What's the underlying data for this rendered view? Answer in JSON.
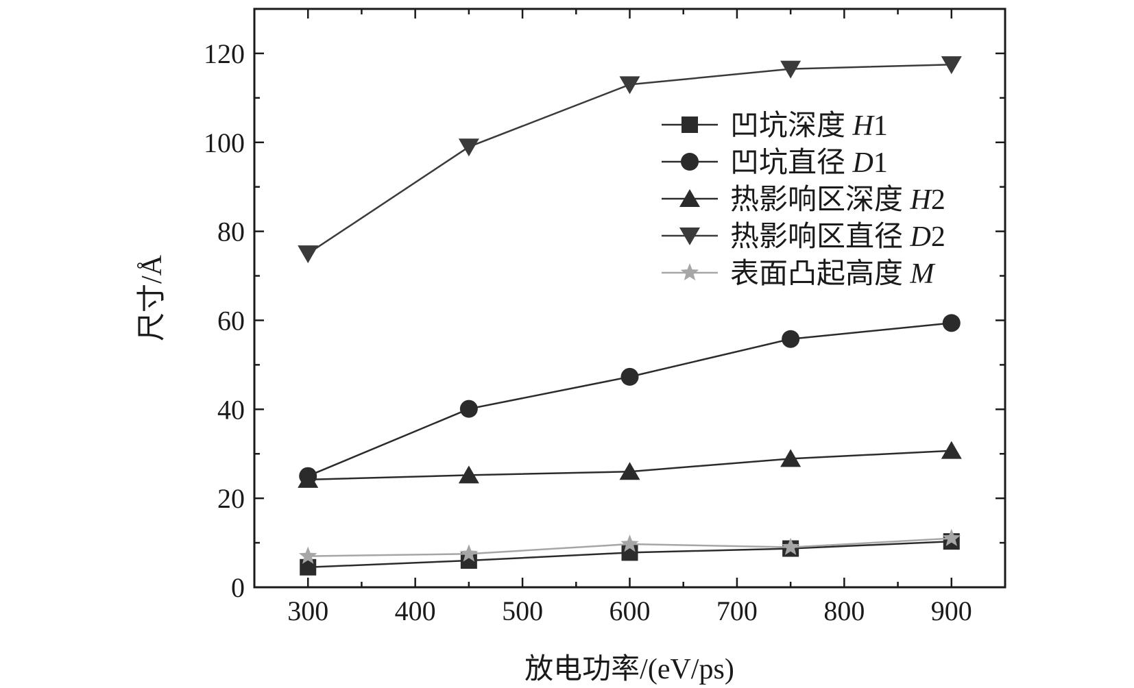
{
  "chart_data": {
    "type": "line",
    "xlabel": "放电功率/(eV/ps)",
    "ylabel": "尺寸/Å",
    "xlim": [
      250,
      950
    ],
    "ylim": [
      0,
      130
    ],
    "xticks": [
      300,
      400,
      500,
      600,
      700,
      800,
      900
    ],
    "yticks": [
      0,
      20,
      40,
      60,
      80,
      100,
      120
    ],
    "grid": false,
    "legend_position": "top-right",
    "x": [
      300,
      450,
      600,
      750,
      900
    ],
    "series": [
      {
        "name": "凹坑深度 H1",
        "name_main": "凹坑深度",
        "name_sym": "H",
        "name_sub": "1",
        "marker": "square",
        "color": "#2b2b2b",
        "values": [
          4.5,
          6,
          7.8,
          8.7,
          10.3
        ]
      },
      {
        "name": "凹坑直径 D1",
        "name_main": "凹坑直径",
        "name_sym": "D",
        "name_sub": "1",
        "marker": "circle",
        "color": "#2b2b2b",
        "values": [
          25,
          40.1,
          47.3,
          55.8,
          59.4
        ]
      },
      {
        "name": "热影响区深度 H2",
        "name_main": "热影响区深度",
        "name_sym": "H",
        "name_sub": "2",
        "marker": "triangle-up",
        "color": "#2b2b2b",
        "values": [
          24.2,
          25.2,
          26,
          28.9,
          30.7
        ]
      },
      {
        "name": "热影响区直径 D2",
        "name_main": "热影响区直径",
        "name_sym": "D",
        "name_sub": "2",
        "marker": "triangle-down",
        "color": "#3a3a3a",
        "values": [
          75,
          99,
          113,
          116.5,
          117.5
        ]
      },
      {
        "name": "表面凸起高度 M",
        "name_main": "表面凸起高度",
        "name_sym": "M",
        "name_sub": "",
        "marker": "star",
        "color": "#a6a6a6",
        "values": [
          7,
          7.5,
          9.7,
          9,
          11
        ]
      }
    ]
  }
}
